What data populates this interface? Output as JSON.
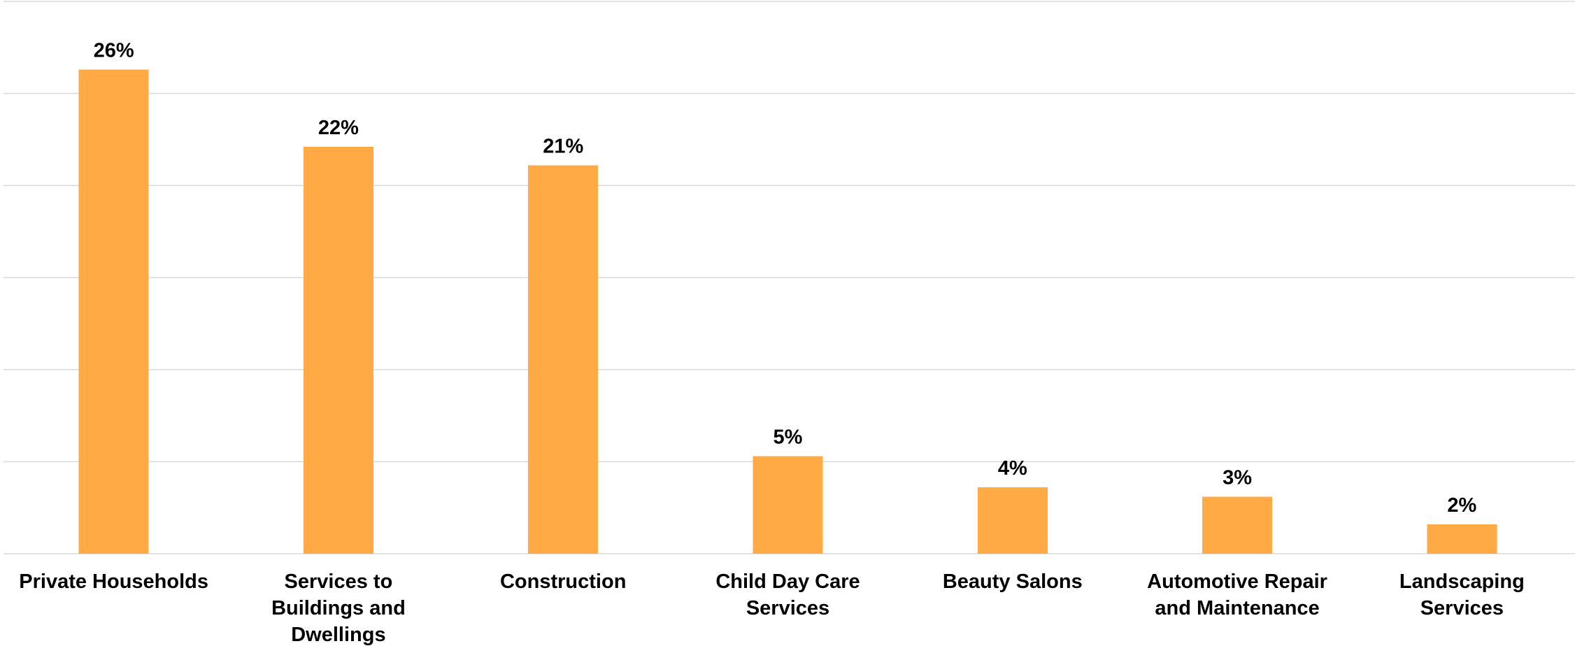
{
  "chart_data": {
    "type": "bar",
    "categories": [
      [
        "Private Households"
      ],
      [
        "Services to",
        "Buildings and",
        "Dwellings"
      ],
      [
        "Construction"
      ],
      [
        "Child Day Care",
        "Services"
      ],
      [
        "Beauty Salons"
      ],
      [
        "Automotive Repair",
        "and Maintenance"
      ],
      [
        "Landscaping",
        "Services"
      ]
    ],
    "values": [
      26.3,
      22.1,
      21.1,
      5.3,
      3.6,
      3.1,
      1.6
    ],
    "value_labels": [
      "26%",
      "22%",
      "21%",
      "5%",
      "4%",
      "3%",
      "2%"
    ],
    "ylim": [
      0,
      30
    ],
    "grid": true,
    "legend": "none",
    "colors": {
      "bar": "#FFAA44",
      "grid": "#D9D9D9"
    }
  }
}
